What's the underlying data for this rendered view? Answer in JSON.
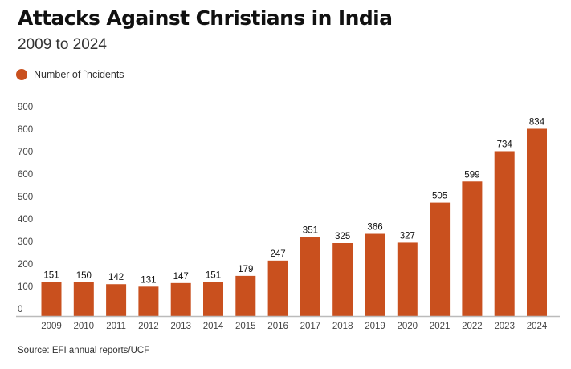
{
  "chart_data": {
    "type": "bar",
    "title": "Attacks Against Christians in India",
    "subtitle": "2009 to 2024",
    "legend": [
      {
        "label": "Number of ˆncidents",
        "color": "#c9501e"
      }
    ],
    "legend_position": "top-left",
    "categories": [
      "2009",
      "2010",
      "2011",
      "2012",
      "2013",
      "2014",
      "2015",
      "2016",
      "2017",
      "2018",
      "2019",
      "2020",
      "2021",
      "2022",
      "2023",
      "2024"
    ],
    "series": [
      {
        "name": "Number of ˆncidents",
        "values": [
          151,
          150,
          142,
          131,
          147,
          151,
          179,
          247,
          351,
          325,
          366,
          327,
          505,
          599,
          734,
          834
        ]
      }
    ],
    "xlabel": "",
    "ylabel": "",
    "ylim": [
      0,
      900
    ],
    "yticks": [
      0,
      100,
      200,
      300,
      400,
      500,
      600,
      700,
      800,
      900
    ],
    "grid": false,
    "data_labels": true,
    "source": "Source: EFI annual reports/UCF"
  }
}
